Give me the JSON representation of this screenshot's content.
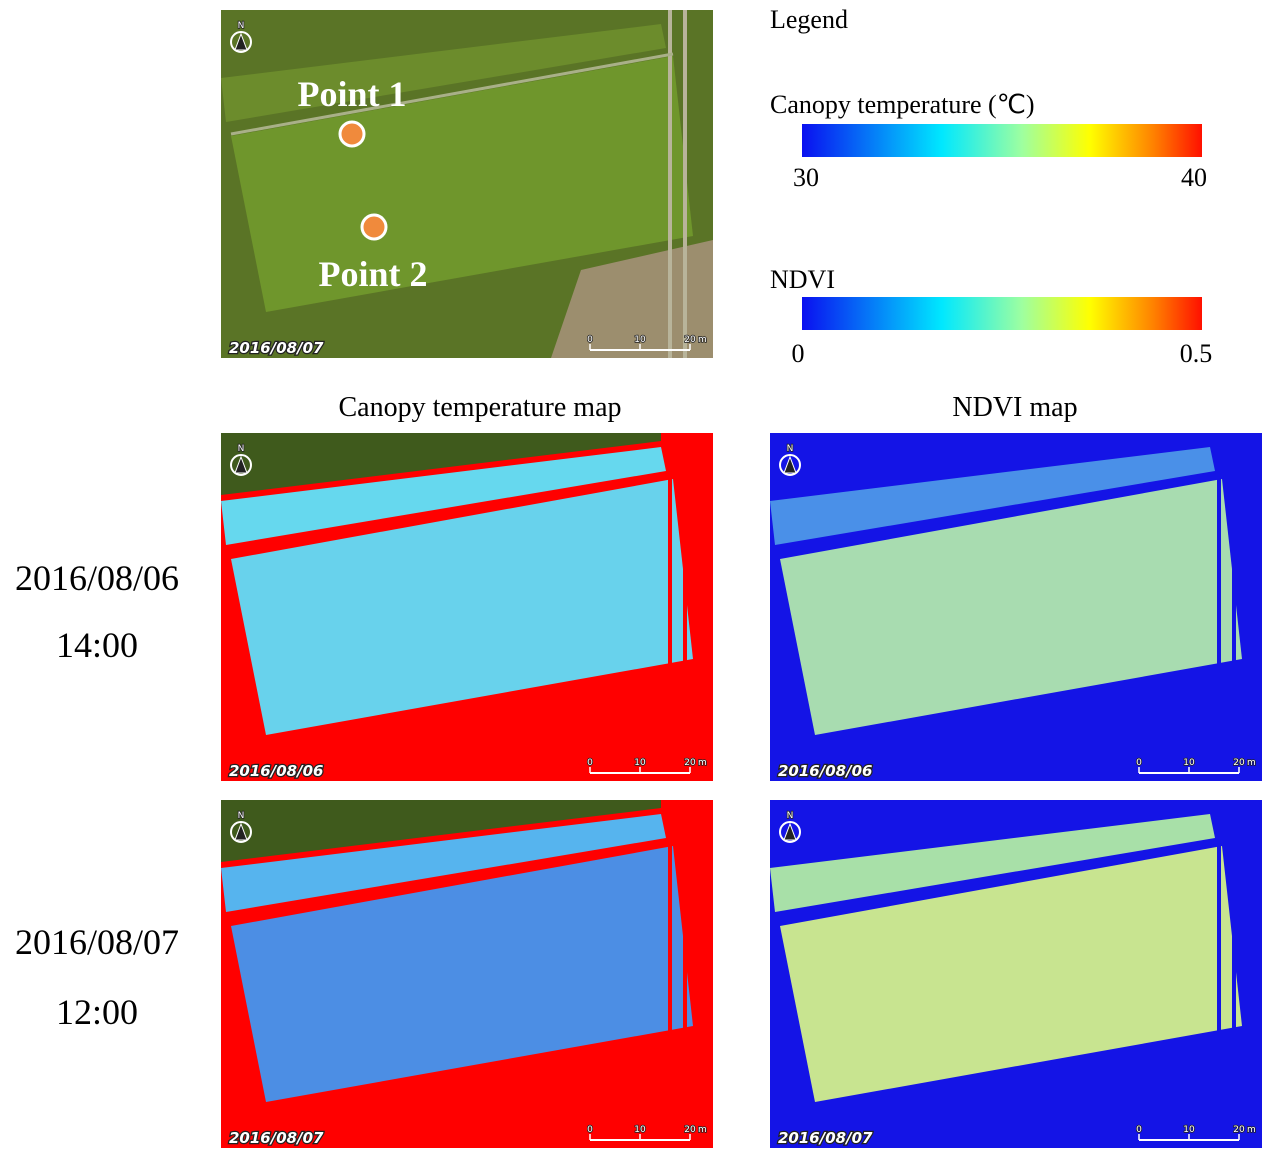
{
  "legend": {
    "title": "Legend",
    "canopy": {
      "label": "Canopy temperature (℃)",
      "min": 30,
      "max": 40
    },
    "ndvi": {
      "label": "NDVI",
      "min": 0,
      "max": 0.5
    }
  },
  "aerial": {
    "points": [
      "Point 1",
      "Point 2"
    ],
    "date": "2016/08/07"
  },
  "columns": [
    "Canopy temperature map",
    "NDVI map"
  ],
  "rows": [
    {
      "date": "2016/08/06",
      "time": "14:00",
      "maps": [
        "2016/08/06",
        "2016/08/06"
      ]
    },
    {
      "date": "2016/08/07",
      "time": "12:00",
      "maps": [
        "2016/08/07",
        "2016/08/07"
      ]
    }
  ],
  "map_common": {
    "north": "N",
    "scale": [
      "0",
      "10",
      "20"
    ],
    "unit": "m"
  }
}
